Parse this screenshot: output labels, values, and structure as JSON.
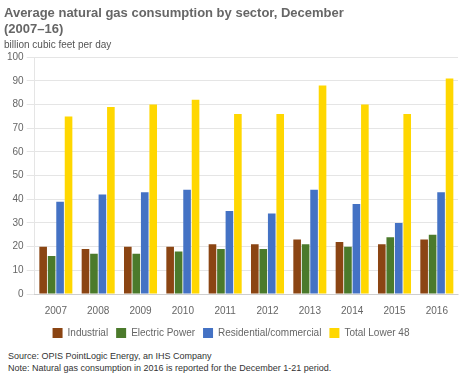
{
  "chart_data": {
    "type": "bar",
    "title": "Average natural gas consumption by sector, December\n(2007–16)",
    "subtitle": "billion cubic feet per day",
    "categories": [
      "2007",
      "2008",
      "2009",
      "2010",
      "2011",
      "2012",
      "2013",
      "2014",
      "2015",
      "2016"
    ],
    "series": [
      {
        "name": "Industrial",
        "color": "#8B4513",
        "values": [
          20,
          19,
          20,
          20,
          21,
          21,
          23,
          22,
          21,
          23
        ]
      },
      {
        "name": "Electric Power",
        "color": "#4B7A2B",
        "values": [
          16,
          17,
          17,
          18,
          19,
          19,
          21,
          20,
          24,
          25
        ]
      },
      {
        "name": "Residential/commercial",
        "color": "#4472C4",
        "values": [
          39,
          42,
          43,
          44,
          35,
          34,
          44,
          38,
          30,
          43
        ]
      },
      {
        "name": "Total Lower 48",
        "color": "#FFD700",
        "values": [
          75,
          79,
          80,
          82,
          76,
          76,
          88,
          80,
          76,
          91
        ]
      }
    ],
    "ylim": [
      0,
      100
    ],
    "yticks": [
      0,
      10,
      20,
      30,
      40,
      50,
      60,
      70,
      80,
      90,
      100
    ],
    "grid": true,
    "legend": "bottom",
    "annotations": [
      "Source: OPIS PointLogic Energy, an IHS Company",
      "Note: Natural gas consumption in 2016 is reported for the December 1-21 period."
    ]
  }
}
